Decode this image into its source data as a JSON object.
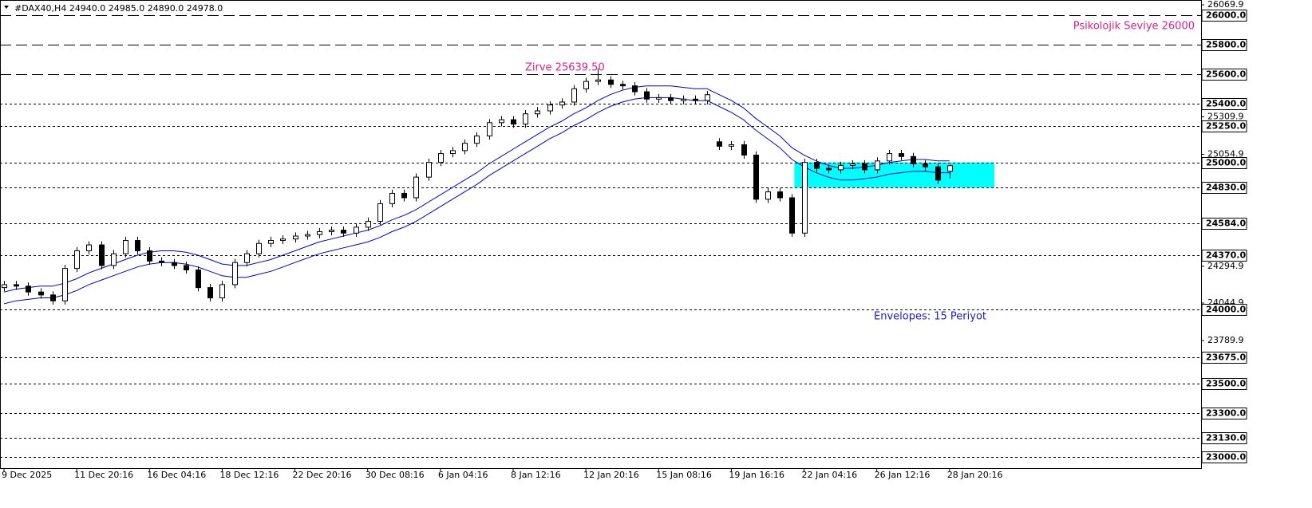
{
  "chart_data": {
    "type": "candlestick",
    "header": "#DAX40,H4  24940.0 24985.0 24890.0 24978.0",
    "annotations": [
      "Psikolojik Seviye 26000",
      "Zirve 25639.50",
      "Envelopes: 15 Periyot"
    ],
    "categories": [
      "9 Dec 2025",
      null,
      null,
      null,
      null,
      null,
      "11 Dec 20:16",
      null,
      null,
      null,
      null,
      null,
      "16 Dec 04:16",
      null,
      null,
      null,
      null,
      null,
      "18 Dec 12:16",
      null,
      null,
      null,
      null,
      null,
      "22 Dec 20:16",
      null,
      null,
      null,
      null,
      null,
      "30 Dec 08:16",
      null,
      null,
      null,
      null,
      null,
      "6 Jan 04:16",
      null,
      null,
      null,
      null,
      null,
      "8 Jan 12:16",
      null,
      null,
      null,
      null,
      null,
      "12 Jan 20:16",
      null,
      null,
      null,
      null,
      null,
      "15 Jan 08:16",
      null,
      null,
      null,
      null,
      null,
      "19 Jan 16:16",
      null,
      null,
      null,
      null,
      null,
      "22 Jan 04:16",
      null,
      null,
      null,
      null,
      null,
      "26 Jan 12:16",
      null,
      null,
      null,
      null,
      null,
      "28 Jan 20:16"
    ],
    "ohlc": [
      [
        24150,
        24195,
        24125,
        24170
      ],
      [
        24170,
        24195,
        24135,
        24160
      ],
      [
        24160,
        24185,
        24095,
        24120
      ],
      [
        24120,
        24145,
        24075,
        24100
      ],
      [
        24100,
        24125,
        24035,
        24060
      ],
      [
        24060,
        24305,
        24035,
        24280
      ],
      [
        24280,
        24425,
        24255,
        24400
      ],
      [
        24400,
        24465,
        24375,
        24440
      ],
      [
        24440,
        24465,
        24275,
        24300
      ],
      [
        24300,
        24405,
        24275,
        24380
      ],
      [
        24380,
        24495,
        24355,
        24470
      ],
      [
        24470,
        24495,
        24375,
        24400
      ],
      [
        24400,
        24425,
        24305,
        24330
      ],
      [
        24330,
        24355,
        24295,
        24320
      ],
      [
        24320,
        24345,
        24275,
        24300
      ],
      [
        24300,
        24325,
        24245,
        24270
      ],
      [
        24270,
        24295,
        24125,
        24150
      ],
      [
        24150,
        24175,
        24055,
        24080
      ],
      [
        24080,
        24195,
        24055,
        24170
      ],
      [
        24170,
        24345,
        24145,
        24320
      ],
      [
        24320,
        24405,
        24295,
        24380
      ],
      [
        24380,
        24475,
        24355,
        24450
      ],
      [
        24450,
        24495,
        24425,
        24470
      ],
      [
        24470,
        24505,
        24445,
        24480
      ],
      [
        24480,
        24525,
        24455,
        24500
      ],
      [
        24500,
        24535,
        24475,
        24510
      ],
      [
        24510,
        24555,
        24485,
        24530
      ],
      [
        24530,
        24565,
        24505,
        24540
      ],
      [
        24540,
        24565,
        24495,
        24520
      ],
      [
        24520,
        24585,
        24495,
        24560
      ],
      [
        24560,
        24625,
        24535,
        24600
      ],
      [
        24600,
        24745,
        24575,
        24720
      ],
      [
        24720,
        24815,
        24695,
        24790
      ],
      [
        24790,
        24815,
        24735,
        24760
      ],
      [
        24760,
        24925,
        24735,
        24900
      ],
      [
        24900,
        25025,
        24875,
        25000
      ],
      [
        25000,
        25085,
        24975,
        25060
      ],
      [
        25060,
        25105,
        25035,
        25080
      ],
      [
        25080,
        25155,
        25055,
        25130
      ],
      [
        25130,
        25205,
        25105,
        25180
      ],
      [
        25180,
        25295,
        25155,
        25270
      ],
      [
        25270,
        25315,
        25245,
        25290
      ],
      [
        25290,
        25315,
        25235,
        25260
      ],
      [
        25260,
        25355,
        25235,
        25330
      ],
      [
        25330,
        25375,
        25305,
        25350
      ],
      [
        25350,
        25415,
        25325,
        25390
      ],
      [
        25390,
        25435,
        25365,
        25410
      ],
      [
        25410,
        25525,
        25385,
        25500
      ],
      [
        25500,
        25575,
        25475,
        25550
      ],
      [
        25550,
        25639.5,
        25525,
        25560
      ],
      [
        25560,
        25585,
        25505,
        25530
      ],
      [
        25530,
        25555,
        25495,
        25520
      ],
      [
        25520,
        25545,
        25455,
        25480
      ],
      [
        25480,
        25505,
        25405,
        25430
      ],
      [
        25430,
        25465,
        25405,
        25440
      ],
      [
        25440,
        25465,
        25395,
        25420
      ],
      [
        25420,
        25455,
        25395,
        25430
      ],
      [
        25430,
        25455,
        25395,
        25420
      ],
      [
        25420,
        25485,
        25395,
        25460
      ],
      [
        25140,
        25165,
        25085,
        25110
      ],
      [
        25110,
        25145,
        25085,
        25120
      ],
      [
        25120,
        25145,
        25025,
        25050
      ],
      [
        25050,
        25075,
        24725,
        24750
      ],
      [
        24750,
        24825,
        24725,
        24800
      ],
      [
        24800,
        24825,
        24735,
        24760
      ],
      [
        24760,
        24785,
        24495,
        24520
      ],
      [
        24520,
        25025,
        24495,
        25000
      ],
      [
        25000,
        25025,
        24935,
        24960
      ],
      [
        24960,
        24985,
        24925,
        24950
      ],
      [
        24950,
        25005,
        24925,
        24980
      ],
      [
        24980,
        25015,
        24955,
        24990
      ],
      [
        24990,
        25015,
        24925,
        24950
      ],
      [
        24950,
        25035,
        24925,
        25010
      ],
      [
        25010,
        25085,
        24985,
        25060
      ],
      [
        25060,
        25085,
        25015,
        25040
      ],
      [
        25040,
        25065,
        24965,
        24990
      ],
      [
        24990,
        25015,
        24945,
        24970
      ],
      [
        24970,
        24995,
        24855,
        24880
      ],
      [
        24940,
        24985,
        24890,
        24978
      ]
    ],
    "series": [
      {
        "color": "#0000cc",
        "values": [
          24120,
          24140,
          24150,
          24160,
          24160,
          24180,
          24210,
          24250,
          24280,
          24310,
          24340,
          24370,
          24390,
          24400,
          24400,
          24390,
          24370,
          24340,
          24310,
          24300,
          24300,
          24320,
          24340,
          24370,
          24400,
          24430,
          24460,
          24480,
          24500,
          24520,
          24540,
          24570,
          24610,
          24640,
          24680,
          24730,
          24780,
          24830,
          24880,
          24930,
          24990,
          25040,
          25090,
          25140,
          25190,
          25240,
          25280,
          25330,
          25370,
          25420,
          25460,
          25490,
          25510,
          25520,
          25520,
          25520,
          25510,
          25500,
          25500,
          25460,
          25420,
          25370,
          25300,
          25240,
          25180,
          25100,
          25050,
          25010,
          24980,
          24960,
          24960,
          24970,
          24980,
          25000,
          25010,
          25020,
          25020,
          25010,
          25010
        ]
      },
      {
        "color": "#0000cc",
        "values": [
          24040,
          24060,
          24070,
          24080,
          24080,
          24100,
          24130,
          24170,
          24200,
          24230,
          24260,
          24290,
          24310,
          24320,
          24320,
          24310,
          24290,
          24260,
          24230,
          24220,
          24220,
          24240,
          24260,
          24290,
          24320,
          24350,
          24380,
          24400,
          24420,
          24440,
          24460,
          24490,
          24530,
          24560,
          24600,
          24650,
          24700,
          24750,
          24800,
          24850,
          24910,
          24960,
          25010,
          25060,
          25110,
          25160,
          25200,
          25250,
          25290,
          25340,
          25380,
          25410,
          25430,
          25440,
          25440,
          25440,
          25430,
          25420,
          25420,
          25380,
          25340,
          25290,
          25220,
          25160,
          25100,
          25020,
          24970,
          24930,
          24900,
          24880,
          24880,
          24890,
          24900,
          24920,
          24930,
          24940,
          24940,
          24930,
          24930
        ]
      }
    ],
    "zone": {
      "x": [
        65.2,
        81.7
      ],
      "y": [
        24830,
        25000
      ],
      "color": "#00ffff"
    },
    "ylim": [
      22924,
      26103
    ],
    "yticks": [
      26069.9,
      25309.9,
      25054.9,
      24294.9,
      24044.9,
      23789.9
    ],
    "levels": [
      {
        "value": 26000,
        "label": "26000.0",
        "style": "dashed"
      },
      {
        "value": 25800,
        "label": "25800.0",
        "style": "dashed"
      },
      {
        "value": 25600,
        "label": "25600.0",
        "style": "dashed"
      },
      {
        "value": 25400,
        "label": "25400.0",
        "style": "dotted"
      },
      {
        "value": 25250,
        "label": "25250.0",
        "style": "dotted"
      },
      {
        "value": 25000,
        "label": "25000.0",
        "style": "dotted"
      },
      {
        "value": 24830,
        "label": "24830.0",
        "style": "dotted"
      },
      {
        "value": 24584,
        "label": "24584.0",
        "style": "dotted"
      },
      {
        "value": 24370,
        "label": "24370.0",
        "style": "dotted"
      },
      {
        "value": 24000,
        "label": "24000.0",
        "style": "dotted"
      },
      {
        "value": 23675,
        "label": "23675.0",
        "style": "dotted"
      },
      {
        "value": 23500,
        "label": "23500.0",
        "style": "dotted"
      },
      {
        "value": 23300,
        "label": "23300.0",
        "style": "dotted"
      },
      {
        "value": 23130,
        "label": "23130.0",
        "style": "dotted"
      },
      {
        "value": 23000,
        "label": "23000.0",
        "style": "dotted"
      }
    ]
  }
}
